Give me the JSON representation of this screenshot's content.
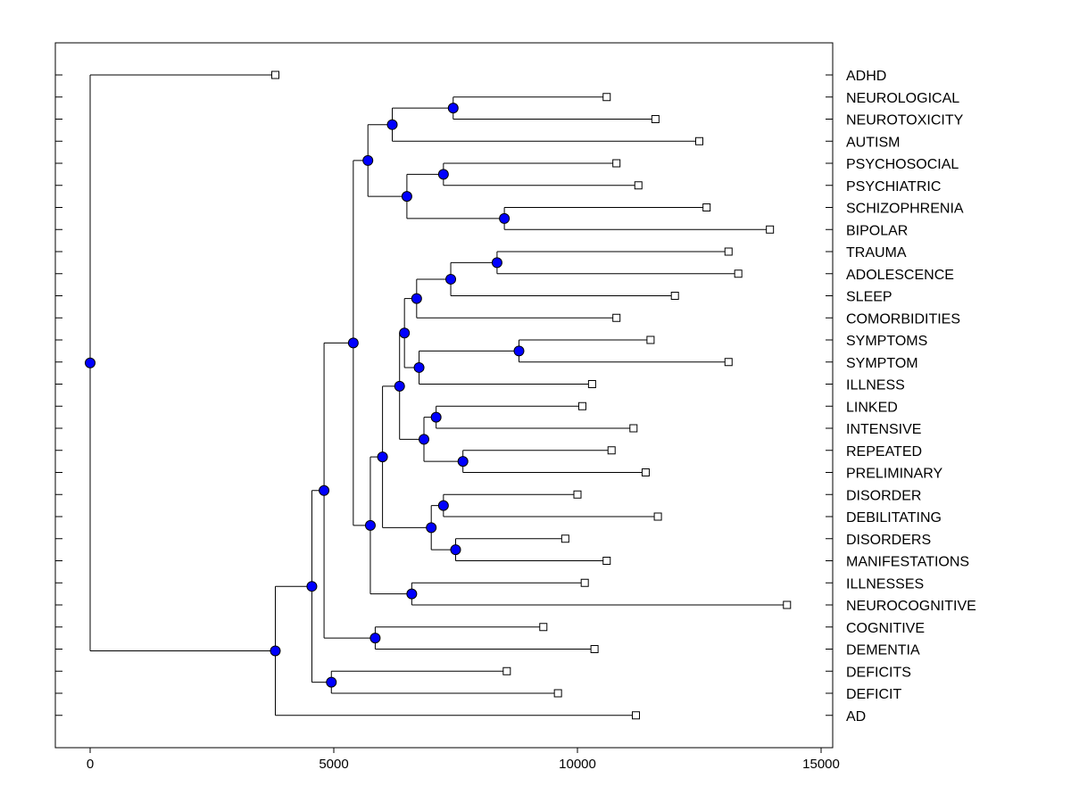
{
  "colors": {
    "node": "#0000ff",
    "line": "#000000",
    "background": "#ffffff"
  },
  "chart_data": {
    "type": "dendrogram",
    "orientation": "root-left",
    "xlim": [
      -700,
      15000
    ],
    "x_ticks": [
      0,
      5000,
      10000,
      15000
    ],
    "x_tick_labels": [
      "0",
      "5000",
      "10000",
      "15000"
    ],
    "leaves": [
      {
        "name": "ADHD",
        "x": 3800
      },
      {
        "name": "NEUROLOGICAL",
        "x": 10600
      },
      {
        "name": "NEUROTOXICITY",
        "x": 11600
      },
      {
        "name": "AUTISM",
        "x": 12500
      },
      {
        "name": "PSYCHOSOCIAL",
        "x": 10800
      },
      {
        "name": "PSYCHIATRIC",
        "x": 11250
      },
      {
        "name": "SCHIZOPHRENIA",
        "x": 12650
      },
      {
        "name": "BIPOLAR",
        "x": 13950
      },
      {
        "name": "TRAUMA",
        "x": 13100
      },
      {
        "name": "ADOLESCENCE",
        "x": 13300
      },
      {
        "name": "SLEEP",
        "x": 12000
      },
      {
        "name": "COMORBIDITIES",
        "x": 10800
      },
      {
        "name": "SYMPTOMS",
        "x": 11500
      },
      {
        "name": "SYMPTOM",
        "x": 13100
      },
      {
        "name": "ILLNESS",
        "x": 10300
      },
      {
        "name": "LINKED",
        "x": 10100
      },
      {
        "name": "INTENSIVE",
        "x": 11150
      },
      {
        "name": "REPEATED",
        "x": 10700
      },
      {
        "name": "PRELIMINARY",
        "x": 11400
      },
      {
        "name": "DISORDER",
        "x": 10000
      },
      {
        "name": "DEBILITATING",
        "x": 11650
      },
      {
        "name": "DISORDERS",
        "x": 9750
      },
      {
        "name": "MANIFESTATIONS",
        "x": 10600
      },
      {
        "name": "ILLNESSES",
        "x": 10150
      },
      {
        "name": "NEUROCOGNITIVE",
        "x": 14300
      },
      {
        "name": "COGNITIVE",
        "x": 9300
      },
      {
        "name": "DEMENTIA",
        "x": 10350
      },
      {
        "name": "DEFICITS",
        "x": 8550
      },
      {
        "name": "DEFICIT",
        "x": 9600
      },
      {
        "name": "AD",
        "x": 11200
      }
    ],
    "merges": [
      {
        "id": "n01",
        "x": 7450,
        "children": [
          "NEUROLOGICAL",
          "NEUROTOXICITY"
        ]
      },
      {
        "id": "n02",
        "x": 6200,
        "children": [
          "n01",
          "AUTISM"
        ]
      },
      {
        "id": "n03",
        "x": 7250,
        "children": [
          "PSYCHOSOCIAL",
          "PSYCHIATRIC"
        ]
      },
      {
        "id": "n04",
        "x": 8500,
        "children": [
          "SCHIZOPHRENIA",
          "BIPOLAR"
        ]
      },
      {
        "id": "n05",
        "x": 6500,
        "children": [
          "n03",
          "n04"
        ]
      },
      {
        "id": "n06",
        "x": 5700,
        "children": [
          "n02",
          "n05"
        ]
      },
      {
        "id": "n07",
        "x": 8350,
        "children": [
          "TRAUMA",
          "ADOLESCENCE"
        ]
      },
      {
        "id": "n08",
        "x": 7400,
        "children": [
          "n07",
          "SLEEP"
        ]
      },
      {
        "id": "n09",
        "x": 6700,
        "children": [
          "n08",
          "COMORBIDITIES"
        ]
      },
      {
        "id": "n10",
        "x": 8800,
        "children": [
          "SYMPTOMS",
          "SYMPTOM"
        ]
      },
      {
        "id": "n11",
        "x": 6750,
        "children": [
          "n10",
          "ILLNESS"
        ]
      },
      {
        "id": "n12",
        "x": 6450,
        "children": [
          "n09",
          "n11"
        ]
      },
      {
        "id": "n13",
        "x": 7100,
        "children": [
          "LINKED",
          "INTENSIVE"
        ]
      },
      {
        "id": "n14",
        "x": 7650,
        "children": [
          "REPEATED",
          "PRELIMINARY"
        ]
      },
      {
        "id": "n15",
        "x": 6850,
        "children": [
          "n13",
          "n14"
        ]
      },
      {
        "id": "n16",
        "x": 6350,
        "children": [
          "n12",
          "n15"
        ]
      },
      {
        "id": "n17",
        "x": 7250,
        "children": [
          "DISORDER",
          "DEBILITATING"
        ]
      },
      {
        "id": "n18",
        "x": 7500,
        "children": [
          "DISORDERS",
          "MANIFESTATIONS"
        ]
      },
      {
        "id": "n19",
        "x": 7000,
        "children": [
          "n17",
          "n18"
        ]
      },
      {
        "id": "n20",
        "x": 6000,
        "children": [
          "n16",
          "n19"
        ]
      },
      {
        "id": "n21",
        "x": 6600,
        "children": [
          "ILLNESSES",
          "NEUROCOGNITIVE"
        ]
      },
      {
        "id": "n22",
        "x": 5750,
        "children": [
          "n20",
          "n21"
        ]
      },
      {
        "id": "n23",
        "x": 5400,
        "children": [
          "n06",
          "n22"
        ]
      },
      {
        "id": "n24",
        "x": 5850,
        "children": [
          "COGNITIVE",
          "DEMENTIA"
        ]
      },
      {
        "id": "n25",
        "x": 4800,
        "children": [
          "n23",
          "n24"
        ]
      },
      {
        "id": "n26",
        "x": 4950,
        "children": [
          "DEFICITS",
          "DEFICIT"
        ]
      },
      {
        "id": "n27",
        "x": 4550,
        "children": [
          "n25",
          "n26"
        ]
      },
      {
        "id": "n28",
        "x": 3800,
        "children": [
          "n27",
          "AD"
        ]
      },
      {
        "id": "root",
        "x": 0,
        "children": [
          "ADHD",
          "n28"
        ]
      }
    ]
  }
}
